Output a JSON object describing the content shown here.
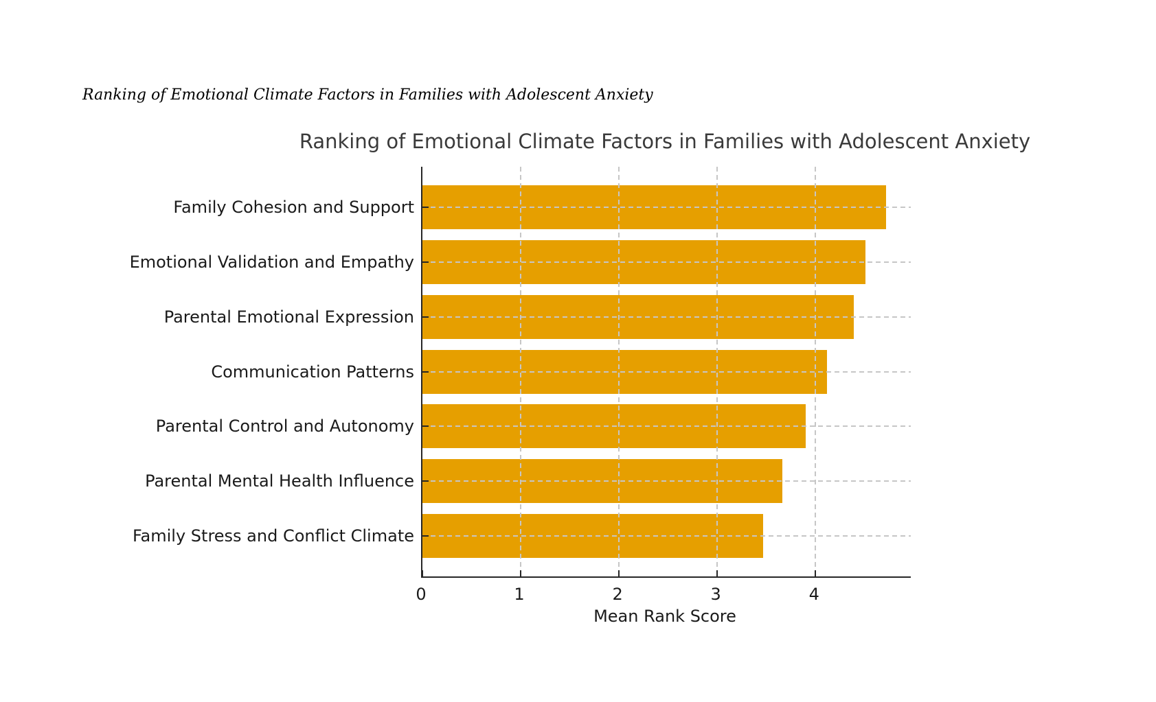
{
  "figure": {
    "note": "Ranking of Emotional Climate Factors in Families with Adolescent Anxiety",
    "background_color": "#ffffff"
  },
  "chart_data": {
    "type": "bar",
    "orientation": "horizontal",
    "title": "Ranking of Emotional Climate Factors in Families with Adolescent Anxiety",
    "categories": [
      "Family Cohesion and Support",
      "Emotional Validation and Empathy",
      "Parental Emotional Expression",
      "Communication Patterns",
      "Parental Control and Autonomy",
      "Parental Mental Health Influence",
      "Family Stress and Conflict Climate"
    ],
    "values": [
      4.72,
      4.51,
      4.39,
      4.12,
      3.9,
      3.66,
      3.47
    ],
    "xlabel": "Mean Rank Score",
    "xlim": [
      0,
      4.97
    ],
    "xticks": [
      0,
      1,
      2,
      3,
      4
    ],
    "bar_color": "#E69F00",
    "gridline_color": "#c6c6c6",
    "grid_style": "dashed, both axes, drawn above bars",
    "legend": "none"
  }
}
